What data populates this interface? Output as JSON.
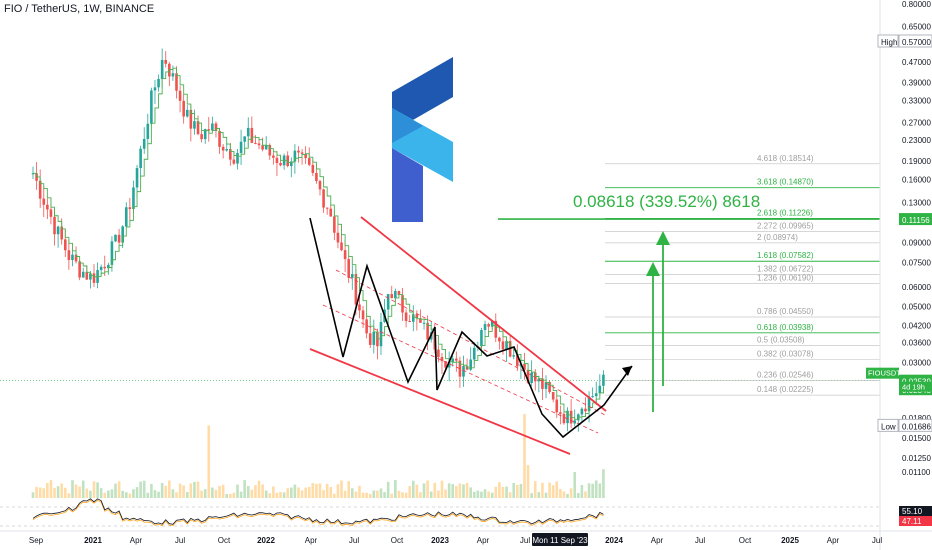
{
  "header": {
    "symbol_line": "FIO / TetherUS, 1W, BINANCE"
  },
  "colors": {
    "up": "#26a69a",
    "down": "#ef5350",
    "ma": "#4caf50",
    "wedge": "#f23645",
    "pattern": "#000000",
    "fib_green": "#089981",
    "fib_grey": "#9e9e9e",
    "target": "#2fb344",
    "rsi": "#131722",
    "logo_dark": "#1d5fb8",
    "logo_light": "#3aa8e6"
  },
  "chart_data": {
    "type": "candlestick",
    "scale": "log",
    "x_ticks": [
      "Sep",
      "2021",
      "Apr",
      "Jul",
      "Oct",
      "2022",
      "Apr",
      "Jul",
      "Oct",
      "2023",
      "Apr",
      "Jul",
      "Mon 11 Sep '23",
      "2024",
      "Apr",
      "Jul",
      "Oct",
      "2025",
      "Apr",
      "Jul"
    ],
    "y_ticks": [
      "0.80000",
      "0.65000",
      "0.57000",
      "0.47000",
      "0.39000",
      "0.33000",
      "0.27000",
      "0.23000",
      "0.19000",
      "0.16000",
      "0.13000",
      "0.11156",
      "0.09000",
      "0.07500",
      "0.06000",
      "0.05000",
      "0.04200",
      "0.03600",
      "0.03000",
      "0.02539",
      "0.02348",
      "0.01800",
      "0.01686",
      "0.01500",
      "0.01250",
      "0.01100"
    ],
    "price_labels": {
      "high_label": "High",
      "high_value": "0.57000",
      "low_label": "Low",
      "low_value": "0.01686",
      "symbol_tag": "FIOUSDT",
      "last_price": "0.02539",
      "countdown": "4d 19h",
      "ma_value": "0.02348",
      "target_value": "0.11156"
    },
    "fib_levels": [
      {
        "label": "4.618 (0.18514)",
        "green": false
      },
      {
        "label": "3.618 (0.14870)",
        "green": true
      },
      {
        "label": "2.618 (0.11226)",
        "green": true
      },
      {
        "label": "2.272 (0.09965)",
        "green": false
      },
      {
        "label": "2 (0.08974)",
        "green": false
      },
      {
        "label": "1.618 (0.07582)",
        "green": true
      },
      {
        "label": "1.382 (0.06722)",
        "green": false
      },
      {
        "label": "1.236 (0.06190)",
        "green": false
      },
      {
        "label": "0.786 (0.04550)",
        "green": false
      },
      {
        "label": "0.618 (0.03938)",
        "green": true
      },
      {
        "label": "0.5 (0.03508)",
        "green": false
      },
      {
        "label": "0.382 (0.03078)",
        "green": false
      },
      {
        "label": "0.236 (0.02546)",
        "green": false
      },
      {
        "label": "0.148 (0.02225)",
        "green": false
      }
    ],
    "target_annotation": "0.08618 (339.52%) 8618",
    "rsi": {
      "value": "55.10",
      "ma_value": "47.11"
    },
    "price_path": [
      0.17,
      0.13,
      0.1,
      0.08,
      0.07,
      0.065,
      0.075,
      0.09,
      0.12,
      0.2,
      0.34,
      0.5,
      0.38,
      0.28,
      0.24,
      0.26,
      0.22,
      0.2,
      0.24,
      0.22,
      0.2,
      0.19,
      0.2,
      0.18,
      0.15,
      0.12,
      0.08,
      0.06,
      0.04,
      0.035,
      0.06,
      0.05,
      0.045,
      0.04,
      0.035,
      0.03,
      0.028,
      0.033,
      0.045,
      0.04,
      0.035,
      0.03,
      0.026,
      0.024,
      0.02,
      0.018,
      0.02,
      0.022,
      0.025
    ]
  }
}
